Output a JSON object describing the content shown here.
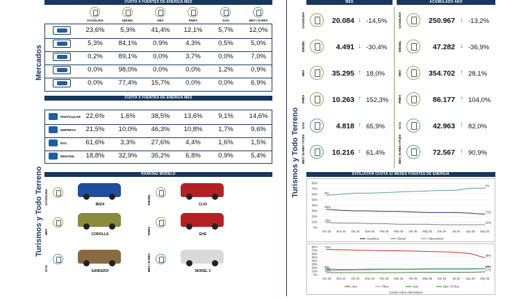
{
  "left": {
    "mercados_title": "Mercados",
    "turismos_title": "Turismos y Todo Terreno",
    "cuota_header_1": "CUOTA X FUENTES DE ENERGIA MES",
    "cuota_header_2": "CUOTA X FUENTES DE ENERGIA MES",
    "fuel_labels": [
      "GASOLINA",
      "DIESEL",
      "HEV",
      "PHEV",
      "GAS",
      "BEV / E-REV"
    ],
    "market_rows": [
      {
        "vehicle": "car-icon",
        "values": [
          "23,6%",
          "5,3%",
          "41,4%",
          "12,1%",
          "5,7%",
          "12,0%"
        ]
      },
      {
        "vehicle": "van-icon",
        "values": [
          "5,3%",
          "84,1%",
          "0,9%",
          "4,3%",
          "0,5%",
          "5,0%"
        ]
      },
      {
        "vehicle": "light-truck-icon",
        "values": [
          "0,2%",
          "89,1%",
          "0,0%",
          "3,7%",
          "0,0%",
          "7,0%"
        ]
      },
      {
        "vehicle": "truck-icon",
        "values": [
          "0,0%",
          "98,0%",
          "0,0%",
          "0,0%",
          "1,2%",
          "0,9%"
        ]
      },
      {
        "vehicle": "bus-icon",
        "values": [
          "0,0%",
          "77,4%",
          "15,7%",
          "0,0%",
          "0,0%",
          "6,9%"
        ]
      }
    ],
    "segment_rows": [
      {
        "label": "PARTICULAR",
        "values": [
          "22,6%",
          "1,6%",
          "38,5%",
          "13,6%",
          "9,1%",
          "14,6%"
        ]
      },
      {
        "label": "EMPRESA",
        "values": [
          "21,5%",
          "10,0%",
          "46,3%",
          "10,8%",
          "1,7%",
          "9,6%"
        ]
      },
      {
        "label": "RAC",
        "values": [
          "61,6%",
          "3,3%",
          "27,6%",
          "4,4%",
          "1,6%",
          "1,5%"
        ]
      },
      {
        "label": "RENTING",
        "values": [
          "18,8%",
          "32,9%",
          "35,2%",
          "6,8%",
          "0,9%",
          "5,4%"
        ]
      }
    ],
    "ranking_header": "RANKING MODELO",
    "ranking": [
      {
        "fuel": "GASOLINA",
        "model": "IBIZA",
        "color": "#1f4e9c"
      },
      {
        "fuel": "DIESEL",
        "model": "CLIO",
        "color": "#b52025"
      },
      {
        "fuel": "HEV",
        "model": "COROLLA",
        "color": "#8a8a3a"
      },
      {
        "fuel": "PHEV",
        "model": "EHS",
        "color": "#b52025"
      },
      {
        "fuel": "GAS",
        "model": "SANDERO",
        "color": "#8a6a40"
      },
      {
        "fuel": "BEV / E-REV",
        "model": "MODEL 3",
        "color": "#d9d9d9"
      }
    ]
  },
  "right": {
    "side_title": "Turismos y Todo Terreno",
    "mes_header": "MES",
    "acum_header": "ACUMULADO AÑO",
    "kpis": [
      {
        "fuel": "GASOLINA",
        "mes": "20.084",
        "mes_var": "-14,5%",
        "mes_dir": "down",
        "acum": "250.967",
        "acum_var": "-13,2%",
        "acum_dir": "down"
      },
      {
        "fuel": "DIESEL",
        "mes": "4.491",
        "mes_var": "-30,4%",
        "mes_dir": "down",
        "acum": "47.282",
        "acum_var": "-36,9%",
        "acum_dir": "down"
      },
      {
        "fuel": "HEV",
        "mes": "35.295",
        "mes_var": "18,0%",
        "mes_dir": "up",
        "acum": "354.702",
        "acum_var": "28,1%",
        "acum_dir": "up"
      },
      {
        "fuel": "PHEV",
        "mes": "10.263",
        "mes_var": "152,3%",
        "mes_dir": "up",
        "acum": "86.177",
        "acum_var": "104,0%",
        "acum_dir": "up"
      },
      {
        "fuel": "GAS",
        "mes": "4.818",
        "mes_var": "65,9%",
        "mes_dir": "up",
        "acum": "42.963",
        "acum_var": "82,0%",
        "acum_dir": "up"
      },
      {
        "fuel": "BEV / E-REV / FCEV",
        "mes": "10.216",
        "mes_var": "61,4%",
        "mes_dir": "up",
        "acum": "72.567",
        "acum_var": "90,9%",
        "acum_dir": "up"
      }
    ],
    "evol_header": "EVOLUCION CUOTA 12 MESES FUENTES DE ENERGIA",
    "colors": {
      "gasolina": "#1f3864",
      "diesel": "#7f7f7f",
      "alternativos": "#5aa58a",
      "hev": "#c0392b",
      "phev": "#a0a0a0",
      "gas": "#4a7f3f",
      "bev": "#2e8b57"
    }
  },
  "chart_data": [
    {
      "type": "line",
      "x": [
        "Oct 24",
        "Nov 24",
        "Dic 24",
        "Ene 25",
        "Feb 25",
        "Mar 25",
        "Abr 25",
        "May 25",
        "Jun 25",
        "Jul 25",
        "Ago 25",
        "Sep 25"
      ],
      "ylim": [
        0,
        80
      ],
      "yticks": [
        "0%",
        "10%",
        "20%",
        "30%",
        "40%",
        "50%",
        "60%",
        "70%",
        "80%"
      ],
      "series": [
        {
          "name": "Gasolina",
          "values": [
            33,
            31,
            30,
            30,
            29,
            29,
            28,
            27,
            27,
            27,
            26,
            24
          ]
        },
        {
          "name": "Diesel",
          "values": [
            9,
            8,
            8,
            7,
            7,
            6,
            6,
            6,
            5,
            5,
            5,
            5
          ]
        },
        {
          "name": "Alternativos",
          "values": [
            58,
            60,
            62,
            62,
            63,
            64,
            65,
            66,
            67,
            67,
            71,
            71
          ]
        }
      ],
      "data_labels": {
        "start": [
          "58%",
          "33%",
          "9%"
        ],
        "end": [
          "71%",
          "24%",
          "5%"
        ]
      }
    },
    {
      "type": "line",
      "x": [
        "Oct 24",
        "Nov 24",
        "Dic 24",
        "Ene 25",
        "Feb 25",
        "Mar 25",
        "Abr 25",
        "May 25",
        "Jun 25",
        "Jul 25",
        "Ago 25",
        "Sep 25"
      ],
      "ylim": [
        0,
        80
      ],
      "yticks": [
        "0%",
        "10%",
        "20%",
        "30%",
        "40%",
        "50%",
        "60%",
        "70%",
        "80%"
      ],
      "series": [
        {
          "name": "Hev",
          "values": [
            73,
            72,
            71,
            70,
            69,
            69,
            68,
            67,
            66,
            65,
            61,
            49
          ]
        },
        {
          "name": "Phev",
          "values": [
            12,
            13,
            14,
            14,
            15,
            15,
            15,
            16,
            16,
            16,
            16,
            17
          ]
        },
        {
          "name": "Gas",
          "values": [
            6,
            6,
            6,
            6,
            6,
            6,
            7,
            7,
            7,
            7,
            7,
            8
          ]
        },
        {
          "name": "Bev / E-Rev",
          "values": [
            16,
            15,
            15,
            16,
            16,
            16,
            16,
            17,
            17,
            17,
            17,
            17
          ]
        }
      ],
      "data_labels": {
        "start": [
          "73%",
          "16%",
          "12%",
          "6%"
        ],
        "end": [
          "49%",
          "17%",
          "17%",
          "8%"
        ]
      },
      "footnote": "Cuotas sobre Alternativos"
    }
  ]
}
